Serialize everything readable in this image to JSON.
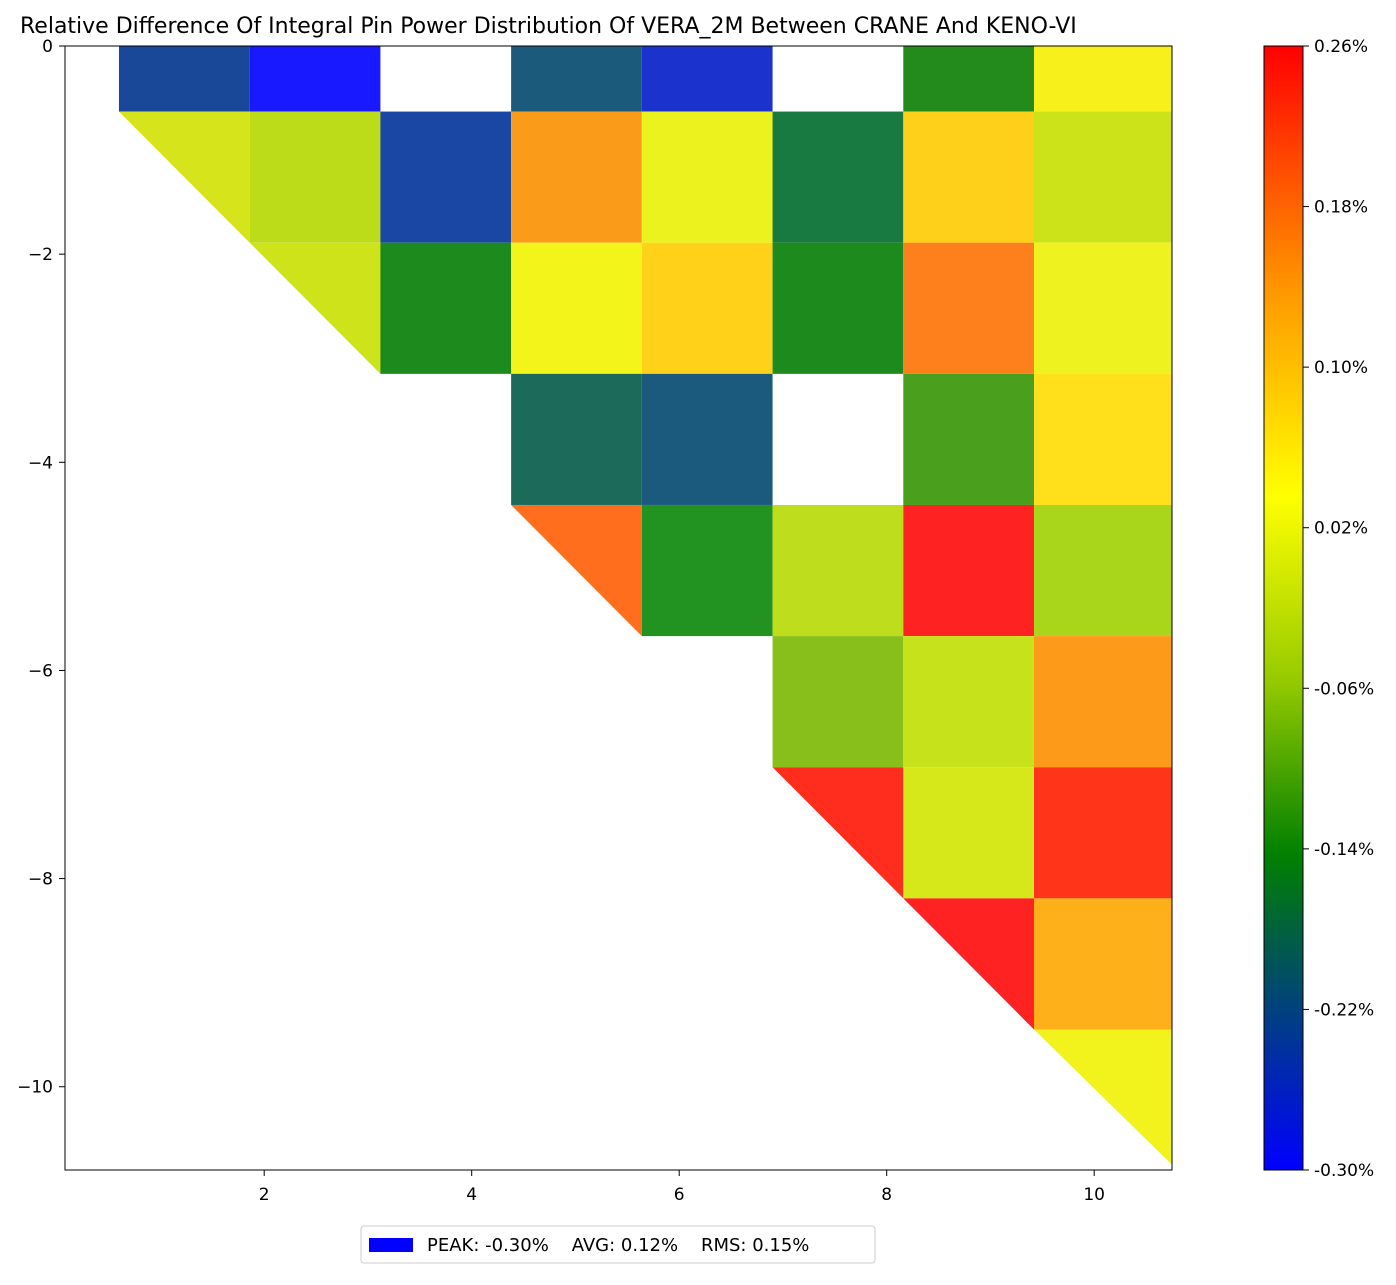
{
  "chart_data": {
    "type": "heatmap",
    "title": "Relative Difference Of Integral Pin Power Distribution Of VERA_2M Between CRANE And KENO-VI",
    "xlabel": "",
    "ylabel": "",
    "xlim": [
      0.08,
      10.75
    ],
    "ylim": [
      -10.8,
      0
    ],
    "x_ticks": [
      2,
      4,
      6,
      8,
      10
    ],
    "y_ticks": [
      0,
      -2,
      -4,
      -6,
      -8,
      -10
    ],
    "y_tick_labels": [
      "0",
      "−2",
      "−4",
      "−6",
      "−8",
      "−10"
    ],
    "grid": false,
    "cell_edges": [
      0.6,
      1.86,
      3.12,
      4.38,
      5.64,
      6.9,
      8.16,
      9.42,
      10.75
    ],
    "row_edges": [
      0,
      -0.63,
      -1.89,
      -3.15,
      -4.41,
      -5.67,
      -6.93,
      -8.19,
      -9.45,
      -10.75
    ],
    "cells": [
      {
        "row": 0,
        "col": 0,
        "shape": "rect",
        "value": -0.22,
        "color": "#1a4899"
      },
      {
        "row": 0,
        "col": 1,
        "shape": "rect",
        "value": -0.3,
        "color": "#1919ff"
      },
      {
        "row": 0,
        "col": 3,
        "shape": "rect",
        "value": -0.2,
        "color": "#1c5a7c"
      },
      {
        "row": 0,
        "col": 4,
        "shape": "rect",
        "value": -0.28,
        "color": "#1b33cc"
      },
      {
        "row": 0,
        "col": 6,
        "shape": "rect",
        "value": -0.12,
        "color": "#228b1c"
      },
      {
        "row": 0,
        "col": 7,
        "shape": "rect",
        "value": 0.07,
        "color": "#f8f01a"
      },
      {
        "row": 1,
        "col": 0,
        "shape": "triangle",
        "value": 0.02,
        "color": "#d6e41c"
      },
      {
        "row": 1,
        "col": 1,
        "shape": "rect",
        "value": 0.0,
        "color": "#bcdc1a"
      },
      {
        "row": 1,
        "col": 2,
        "shape": "rect",
        "value": -0.23,
        "color": "#1a47a4"
      },
      {
        "row": 1,
        "col": 3,
        "shape": "rect",
        "value": 0.14,
        "color": "#fb9b1a"
      },
      {
        "row": 1,
        "col": 4,
        "shape": "rect",
        "value": 0.05,
        "color": "#ecf21e"
      },
      {
        "row": 1,
        "col": 5,
        "shape": "rect",
        "value": -0.16,
        "color": "#187a40"
      },
      {
        "row": 1,
        "col": 6,
        "shape": "rect",
        "value": 0.1,
        "color": "#ffd01a"
      },
      {
        "row": 1,
        "col": 7,
        "shape": "rect",
        "value": 0.01,
        "color": "#cce319"
      },
      {
        "row": 2,
        "col": 1,
        "shape": "triangle",
        "value": 0.01,
        "color": "#cfe31b"
      },
      {
        "row": 2,
        "col": 2,
        "shape": "rect",
        "value": -0.12,
        "color": "#1c8a1c"
      },
      {
        "row": 2,
        "col": 3,
        "shape": "rect",
        "value": 0.06,
        "color": "#f3f41a"
      },
      {
        "row": 2,
        "col": 4,
        "shape": "rect",
        "value": 0.1,
        "color": "#ffd219"
      },
      {
        "row": 2,
        "col": 5,
        "shape": "rect",
        "value": -0.12,
        "color": "#1c8a1c"
      },
      {
        "row": 2,
        "col": 6,
        "shape": "rect",
        "value": 0.17,
        "color": "#fd801c"
      },
      {
        "row": 2,
        "col": 7,
        "shape": "rect",
        "value": 0.05,
        "color": "#eef21f"
      },
      {
        "row": 3,
        "col": 3,
        "shape": "rect",
        "value": -0.18,
        "color": "#1b6a5a"
      },
      {
        "row": 3,
        "col": 4,
        "shape": "rect",
        "value": -0.2,
        "color": "#1b5a7c"
      },
      {
        "row": 3,
        "col": 6,
        "shape": "rect",
        "value": -0.09,
        "color": "#4aa01c"
      },
      {
        "row": 3,
        "col": 7,
        "shape": "rect",
        "value": 0.09,
        "color": "#ffe01a"
      },
      {
        "row": 4,
        "col": 3,
        "shape": "triangle",
        "value": 0.18,
        "color": "#ff6e1c"
      },
      {
        "row": 4,
        "col": 4,
        "shape": "rect",
        "value": -0.12,
        "color": "#229220"
      },
      {
        "row": 4,
        "col": 5,
        "shape": "rect",
        "value": 0.0,
        "color": "#bedd1c"
      },
      {
        "row": 4,
        "col": 6,
        "shape": "rect",
        "value": 0.25,
        "color": "#ff2222"
      },
      {
        "row": 4,
        "col": 7,
        "shape": "rect",
        "value": -0.02,
        "color": "#a9d51a"
      },
      {
        "row": 5,
        "col": 5,
        "shape": "rect",
        "value": -0.05,
        "color": "#88bf1a"
      },
      {
        "row": 5,
        "col": 6,
        "shape": "rect",
        "value": 0.01,
        "color": "#c6e21a"
      },
      {
        "row": 5,
        "col": 7,
        "shape": "rect",
        "value": 0.14,
        "color": "#fd9a1a"
      },
      {
        "row": 6,
        "col": 5,
        "shape": "triangle",
        "value": 0.24,
        "color": "#ff2d1e"
      },
      {
        "row": 6,
        "col": 6,
        "shape": "rect",
        "value": 0.03,
        "color": "#d6e81a"
      },
      {
        "row": 6,
        "col": 7,
        "shape": "rect",
        "value": 0.24,
        "color": "#ff3419"
      },
      {
        "row": 7,
        "col": 6,
        "shape": "triangle",
        "value": 0.25,
        "color": "#ff2222"
      },
      {
        "row": 7,
        "col": 7,
        "shape": "rect",
        "value": 0.12,
        "color": "#fdb01a"
      },
      {
        "row": 8,
        "col": 7,
        "shape": "triangle",
        "value": 0.06,
        "color": "#f2f31c"
      }
    ],
    "colorbar": {
      "min": -0.3,
      "max": 0.26,
      "tick_labels": [
        "0.26%",
        "0.18%",
        "0.10%",
        "0.02%",
        "-0.06%",
        "-0.14%",
        "-0.22%",
        "-0.30%"
      ],
      "stops": [
        {
          "offset": 0.0,
          "color": "#ff0000"
        },
        {
          "offset": 0.22,
          "color": "#ff9900"
        },
        {
          "offset": 0.4,
          "color": "#ffff00"
        },
        {
          "offset": 0.56,
          "color": "#99cc00"
        },
        {
          "offset": 0.72,
          "color": "#008000"
        },
        {
          "offset": 0.86,
          "color": "#004080"
        },
        {
          "offset": 1.0,
          "color": "#0000ff"
        }
      ]
    },
    "legend": {
      "placement": "bottom-center",
      "swatch_color": "#0000ff",
      "text": "PEAK: -0.30%    AVG: 0.12%    RMS: 0.15%"
    }
  }
}
